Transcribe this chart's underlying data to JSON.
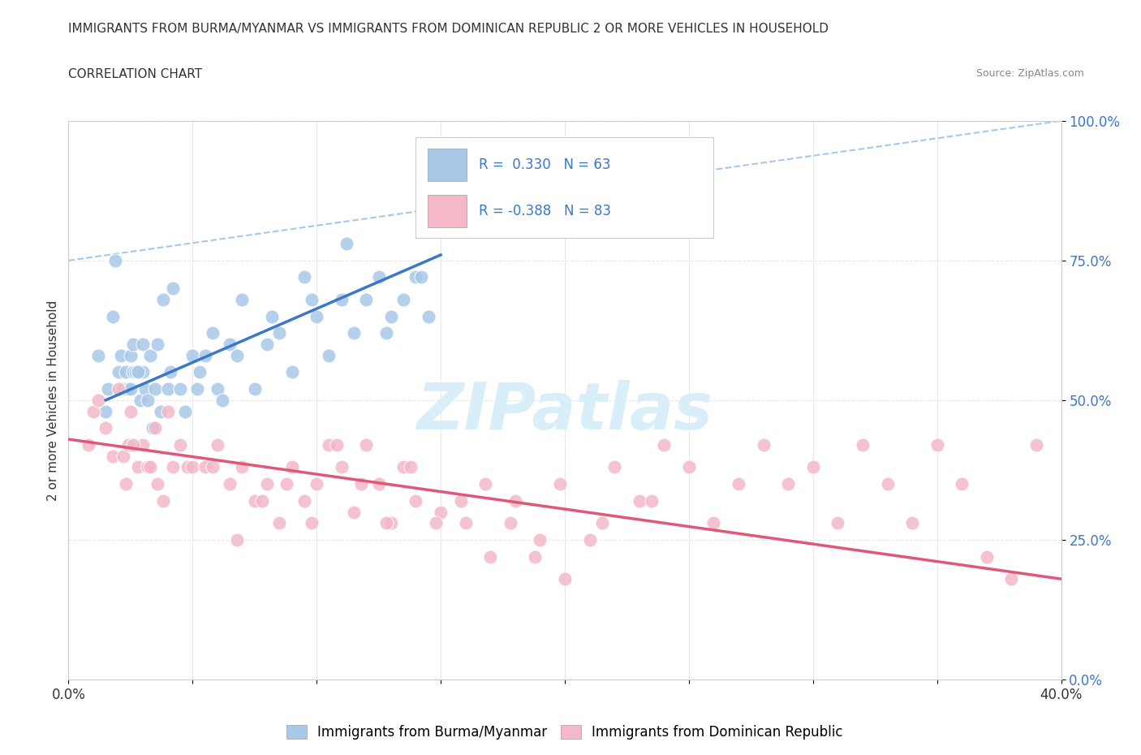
{
  "title_line1": "IMMIGRANTS FROM BURMA/MYANMAR VS IMMIGRANTS FROM DOMINICAN REPUBLIC 2 OR MORE VEHICLES IN HOUSEHOLD",
  "title_line2": "CORRELATION CHART",
  "source_text": "Source: ZipAtlas.com",
  "ytick_labels": [
    "0.0%",
    "25.0%",
    "50.0%",
    "75.0%",
    "100.0%"
  ],
  "ytick_values": [
    0,
    25,
    50,
    75,
    100
  ],
  "xtick_values": [
    0,
    5,
    10,
    15,
    20,
    25,
    30,
    35,
    40
  ],
  "legend_blue_label": "Immigrants from Burma/Myanmar",
  "legend_pink_label": "Immigrants from Dominican Republic",
  "blue_color": "#A8C8E8",
  "pink_color": "#F4B8C8",
  "blue_line_color": "#3A78C9",
  "pink_line_color": "#E05878",
  "dashed_line_color": "#A8C8E8",
  "watermark_text": "ZIPatlas",
  "watermark_color": "#D8EEF8",
  "background_color": "#FFFFFF",
  "grid_color": "#E8E8E8",
  "ylabel_color": "#3A78C9",
  "blue_scatter_x": [
    1.2,
    1.8,
    2.0,
    2.1,
    2.2,
    2.3,
    2.4,
    2.5,
    2.5,
    2.6,
    2.6,
    2.7,
    2.8,
    2.9,
    3.0,
    3.0,
    3.1,
    3.2,
    3.3,
    3.5,
    3.6,
    3.7,
    3.8,
    4.0,
    4.1,
    4.5,
    4.7,
    5.0,
    5.2,
    5.5,
    5.8,
    6.0,
    6.2,
    6.5,
    7.0,
    7.5,
    8.0,
    8.5,
    9.0,
    9.5,
    10.0,
    10.5,
    11.0,
    11.5,
    12.0,
    12.5,
    13.0,
    13.5,
    14.0,
    14.5,
    1.5,
    1.6,
    1.9,
    2.8,
    3.4,
    4.2,
    5.3,
    6.8,
    8.2,
    9.8,
    11.2,
    12.8,
    14.2
  ],
  "blue_scatter_y": [
    58,
    65,
    55,
    58,
    52,
    55,
    52,
    58,
    52,
    55,
    60,
    55,
    55,
    50,
    55,
    60,
    52,
    50,
    58,
    52,
    60,
    48,
    68,
    52,
    55,
    52,
    48,
    58,
    52,
    58,
    62,
    52,
    50,
    60,
    68,
    52,
    60,
    62,
    55,
    72,
    65,
    58,
    68,
    62,
    68,
    72,
    65,
    68,
    72,
    65,
    48,
    52,
    75,
    55,
    45,
    70,
    55,
    58,
    65,
    68,
    78,
    62,
    72
  ],
  "pink_scatter_x": [
    0.8,
    1.0,
    1.2,
    1.5,
    1.8,
    2.0,
    2.2,
    2.4,
    2.5,
    2.8,
    3.0,
    3.2,
    3.5,
    3.8,
    4.0,
    4.2,
    4.5,
    4.8,
    5.0,
    5.5,
    6.0,
    6.5,
    7.0,
    7.5,
    8.0,
    8.5,
    9.0,
    9.5,
    10.0,
    10.5,
    11.0,
    11.5,
    12.0,
    12.5,
    13.0,
    13.5,
    14.0,
    15.0,
    16.0,
    17.0,
    18.0,
    19.0,
    20.0,
    21.0,
    22.0,
    23.0,
    24.0,
    25.0,
    26.0,
    27.0,
    28.0,
    29.0,
    30.0,
    31.0,
    32.0,
    33.0,
    34.0,
    35.0,
    36.0,
    37.0,
    38.0,
    39.0,
    2.3,
    2.6,
    3.3,
    3.6,
    5.8,
    6.8,
    7.8,
    8.8,
    9.8,
    10.8,
    11.8,
    12.8,
    13.8,
    14.8,
    15.8,
    16.8,
    17.8,
    18.8,
    19.8,
    21.5,
    23.5
  ],
  "pink_scatter_y": [
    42,
    48,
    50,
    45,
    40,
    52,
    40,
    42,
    48,
    38,
    42,
    38,
    45,
    32,
    48,
    38,
    42,
    38,
    38,
    38,
    42,
    35,
    38,
    32,
    35,
    28,
    38,
    32,
    35,
    42,
    38,
    30,
    42,
    35,
    28,
    38,
    32,
    30,
    28,
    22,
    32,
    25,
    18,
    25,
    38,
    32,
    42,
    38,
    28,
    35,
    42,
    35,
    38,
    28,
    42,
    35,
    28,
    42,
    35,
    22,
    18,
    42,
    35,
    42,
    38,
    35,
    38,
    25,
    32,
    35,
    28,
    42,
    35,
    28,
    38,
    28,
    32,
    35,
    28,
    22,
    35,
    28,
    32
  ],
  "blue_trend_x": [
    1.5,
    15.0
  ],
  "blue_trend_y": [
    50,
    76
  ],
  "pink_trend_x": [
    0,
    40
  ],
  "pink_trend_y": [
    43,
    18
  ],
  "dashed_line_x": [
    0,
    40
  ],
  "dashed_line_y": [
    75,
    100
  ],
  "xlim": [
    0,
    40
  ],
  "ylim": [
    0,
    100
  ]
}
